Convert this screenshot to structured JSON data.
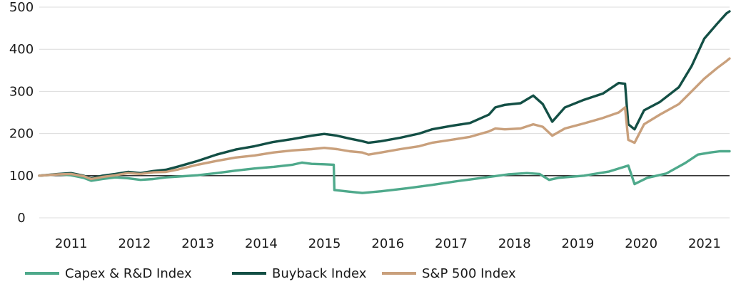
{
  "chart_data": {
    "type": "line",
    "title": "",
    "xlabel": "",
    "ylabel": "",
    "ylim": [
      0,
      500
    ],
    "yticks": [
      0,
      100,
      200,
      300,
      400,
      500
    ],
    "xlim": [
      2010.8,
      2021.7
    ],
    "xticks": [
      2011,
      2012,
      2013,
      2014,
      2015,
      2016,
      2017,
      2018,
      2019,
      2020,
      2021
    ],
    "x_tick_labels": [
      "2011",
      "2012",
      "2013",
      "2014",
      "2015",
      "2016",
      "2017",
      "2018",
      "2019",
      "2020",
      "2021"
    ],
    "reference_line": 100,
    "grid": "horizontal",
    "legend_position": "bottom-left",
    "series": [
      {
        "name": "Capex & R&D Index",
        "color": "#4ea98b",
        "points": [
          [
            2010.8,
            100
          ],
          [
            2011.1,
            103
          ],
          [
            2011.3,
            101
          ],
          [
            2011.5,
            95
          ],
          [
            2011.62,
            88
          ],
          [
            2011.8,
            92
          ],
          [
            2012.0,
            96
          ],
          [
            2012.2,
            94
          ],
          [
            2012.4,
            90
          ],
          [
            2012.6,
            92
          ],
          [
            2012.8,
            96
          ],
          [
            2013.0,
            98
          ],
          [
            2013.3,
            101
          ],
          [
            2013.6,
            106
          ],
          [
            2013.9,
            112
          ],
          [
            2014.2,
            117
          ],
          [
            2014.5,
            121
          ],
          [
            2014.8,
            126
          ],
          [
            2014.95,
            131
          ],
          [
            2015.1,
            128
          ],
          [
            2015.3,
            127
          ],
          [
            2015.45,
            126
          ],
          [
            2015.46,
            66
          ],
          [
            2015.7,
            62
          ],
          [
            2015.9,
            59
          ],
          [
            2016.2,
            63
          ],
          [
            2016.6,
            70
          ],
          [
            2017.0,
            78
          ],
          [
            2017.4,
            87
          ],
          [
            2017.8,
            95
          ],
          [
            2018.2,
            103
          ],
          [
            2018.5,
            106
          ],
          [
            2018.7,
            104
          ],
          [
            2018.85,
            90
          ],
          [
            2019.0,
            95
          ],
          [
            2019.4,
            100
          ],
          [
            2019.8,
            110
          ],
          [
            2020.1,
            124
          ],
          [
            2020.2,
            80
          ],
          [
            2020.4,
            95
          ],
          [
            2020.7,
            105
          ],
          [
            2021.0,
            130
          ],
          [
            2021.2,
            150
          ],
          [
            2021.4,
            155
          ],
          [
            2021.55,
            158
          ],
          [
            2021.7,
            158
          ]
        ]
      },
      {
        "name": "Buyback Index",
        "color": "#134f45",
        "points": [
          [
            2010.8,
            100
          ],
          [
            2011.1,
            104
          ],
          [
            2011.3,
            106
          ],
          [
            2011.5,
            100
          ],
          [
            2011.62,
            94
          ],
          [
            2011.8,
            100
          ],
          [
            2012.0,
            104
          ],
          [
            2012.2,
            109
          ],
          [
            2012.4,
            106
          ],
          [
            2012.6,
            111
          ],
          [
            2012.8,
            114
          ],
          [
            2013.0,
            122
          ],
          [
            2013.3,
            135
          ],
          [
            2013.6,
            150
          ],
          [
            2013.9,
            162
          ],
          [
            2014.2,
            170
          ],
          [
            2014.5,
            180
          ],
          [
            2014.8,
            187
          ],
          [
            2015.1,
            195
          ],
          [
            2015.3,
            199
          ],
          [
            2015.5,
            195
          ],
          [
            2015.7,
            188
          ],
          [
            2015.9,
            182
          ],
          [
            2016.0,
            178
          ],
          [
            2016.2,
            182
          ],
          [
            2016.5,
            190
          ],
          [
            2016.8,
            200
          ],
          [
            2017.0,
            210
          ],
          [
            2017.3,
            218
          ],
          [
            2017.6,
            225
          ],
          [
            2017.9,
            245
          ],
          [
            2018.0,
            262
          ],
          [
            2018.15,
            268
          ],
          [
            2018.4,
            272
          ],
          [
            2018.6,
            290
          ],
          [
            2018.75,
            270
          ],
          [
            2018.9,
            228
          ],
          [
            2019.1,
            262
          ],
          [
            2019.4,
            280
          ],
          [
            2019.7,
            295
          ],
          [
            2019.95,
            320
          ],
          [
            2020.05,
            318
          ],
          [
            2020.1,
            222
          ],
          [
            2020.2,
            210
          ],
          [
            2020.35,
            255
          ],
          [
            2020.6,
            275
          ],
          [
            2020.9,
            310
          ],
          [
            2021.1,
            360
          ],
          [
            2021.3,
            425
          ],
          [
            2021.5,
            460
          ],
          [
            2021.65,
            485
          ],
          [
            2021.7,
            490
          ]
        ]
      },
      {
        "name": "S&P 500 Index",
        "color": "#c9a07c",
        "points": [
          [
            2010.8,
            100
          ],
          [
            2011.1,
            103
          ],
          [
            2011.3,
            104
          ],
          [
            2011.5,
            99
          ],
          [
            2011.62,
            92
          ],
          [
            2011.8,
            97
          ],
          [
            2012.0,
            101
          ],
          [
            2012.2,
            106
          ],
          [
            2012.4,
            104
          ],
          [
            2012.6,
            108
          ],
          [
            2012.8,
            109
          ],
          [
            2013.0,
            115
          ],
          [
            2013.3,
            126
          ],
          [
            2013.6,
            135
          ],
          [
            2013.9,
            143
          ],
          [
            2014.2,
            148
          ],
          [
            2014.5,
            155
          ],
          [
            2014.8,
            160
          ],
          [
            2015.1,
            163
          ],
          [
            2015.3,
            166
          ],
          [
            2015.5,
            163
          ],
          [
            2015.7,
            158
          ],
          [
            2015.9,
            155
          ],
          [
            2016.0,
            150
          ],
          [
            2016.2,
            155
          ],
          [
            2016.5,
            163
          ],
          [
            2016.8,
            170
          ],
          [
            2017.0,
            178
          ],
          [
            2017.3,
            185
          ],
          [
            2017.6,
            192
          ],
          [
            2017.9,
            205
          ],
          [
            2018.0,
            212
          ],
          [
            2018.15,
            210
          ],
          [
            2018.4,
            212
          ],
          [
            2018.6,
            222
          ],
          [
            2018.75,
            216
          ],
          [
            2018.9,
            195
          ],
          [
            2019.1,
            212
          ],
          [
            2019.4,
            224
          ],
          [
            2019.7,
            237
          ],
          [
            2019.95,
            250
          ],
          [
            2020.05,
            262
          ],
          [
            2020.1,
            185
          ],
          [
            2020.2,
            178
          ],
          [
            2020.35,
            222
          ],
          [
            2020.6,
            245
          ],
          [
            2020.9,
            270
          ],
          [
            2021.1,
            300
          ],
          [
            2021.3,
            330
          ],
          [
            2021.5,
            355
          ],
          [
            2021.65,
            372
          ],
          [
            2021.7,
            378
          ]
        ]
      }
    ]
  }
}
